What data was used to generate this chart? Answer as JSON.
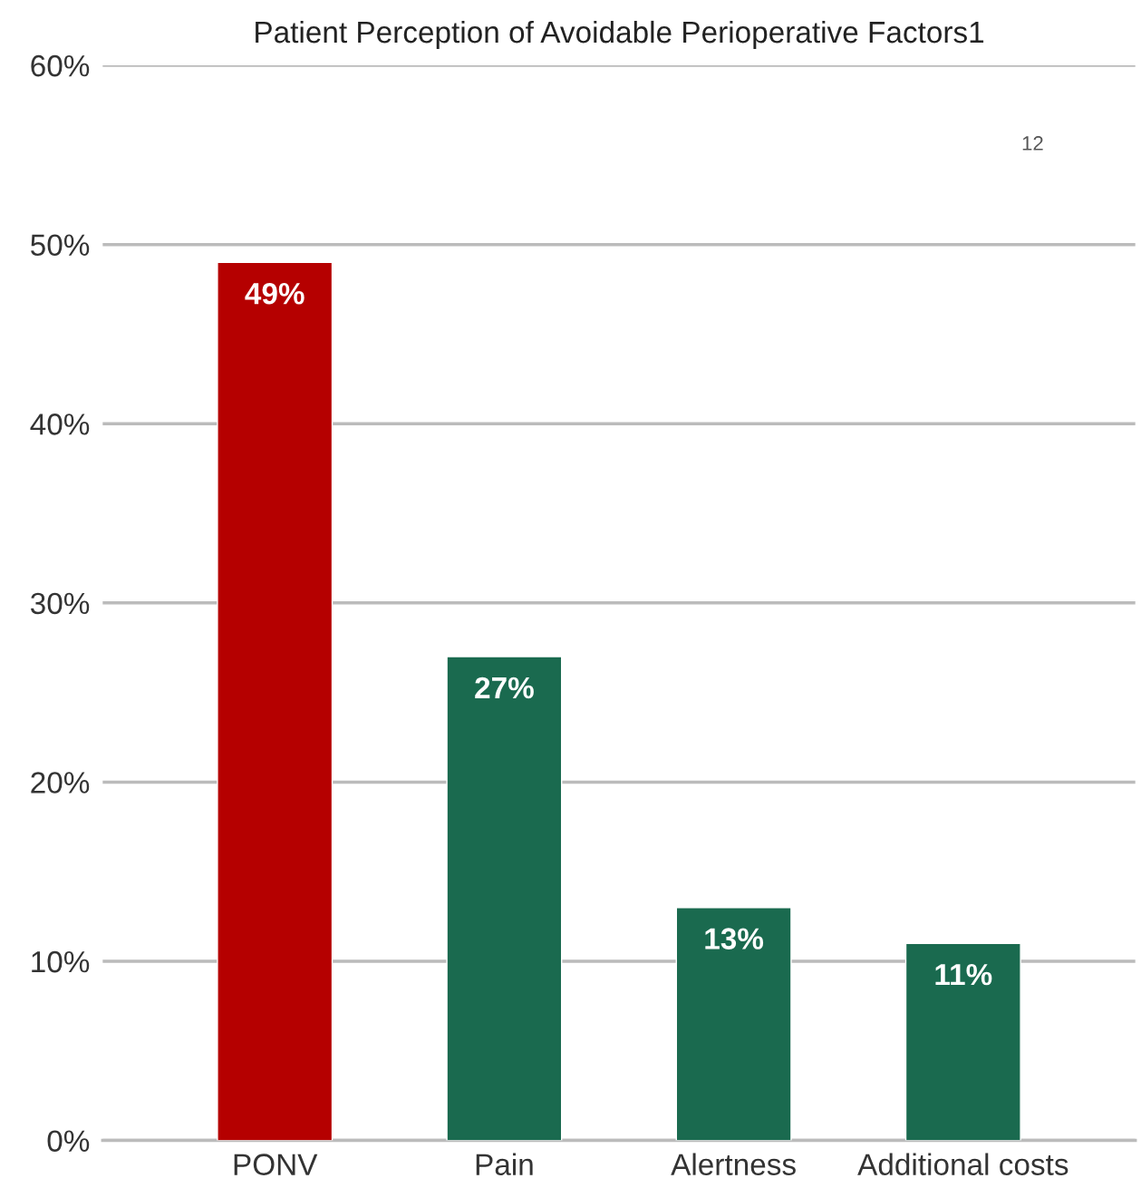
{
  "chart_data": {
    "type": "bar",
    "title": "Patient Perception of Avoidable Perioperative Factors1",
    "categories": [
      "PONV",
      "Pain",
      "Alertness",
      "Additional costs"
    ],
    "values": [
      49,
      27,
      13,
      11
    ],
    "colors": [
      "#b50000",
      "#1a6a4f",
      "#1a6a4f",
      "#1a6a4f"
    ],
    "value_labels": [
      "49%",
      "27%",
      "13%",
      "11%"
    ],
    "ylim": [
      0,
      60
    ],
    "yticks": [
      {
        "value": 0,
        "label": "0%"
      },
      {
        "value": 10,
        "label": "10%"
      },
      {
        "value": 20,
        "label": "20%"
      },
      {
        "value": 30,
        "label": "30%"
      },
      {
        "value": 40,
        "label": "40%"
      },
      {
        "value": 50,
        "label": "50%"
      },
      {
        "value": 60,
        "label": "60%"
      }
    ],
    "grid": "y",
    "annotations": [
      "12"
    ]
  }
}
